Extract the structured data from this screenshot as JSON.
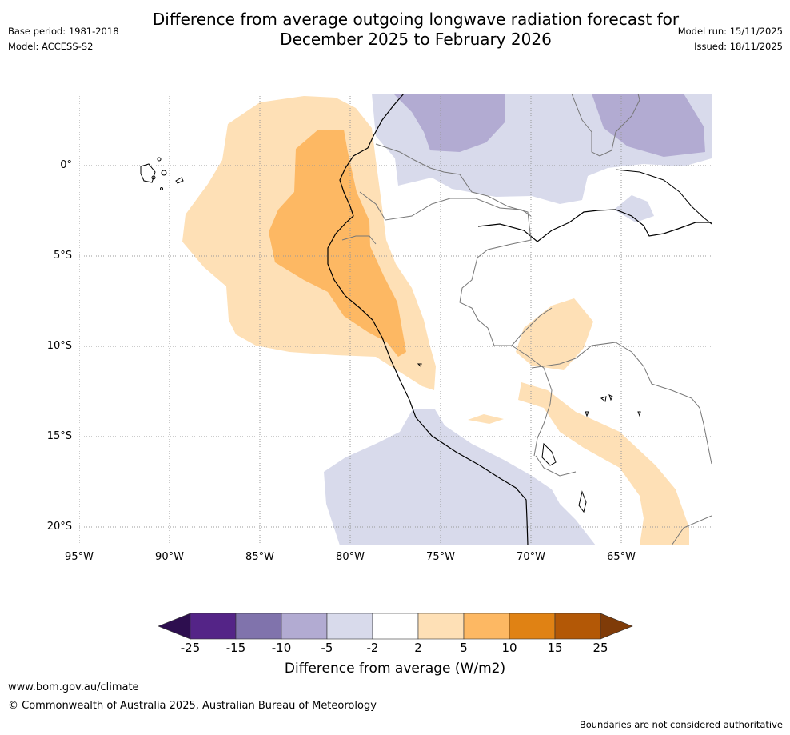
{
  "header": {
    "title_line1": "Difference from average outgoing longwave radiation forecast for",
    "title_line2": "December 2025 to February 2026",
    "base_period": "Base period: 1981-2018",
    "model": "Model: ACCESS-S2",
    "model_run": "Model run: 15/11/2025",
    "issued": "Issued: 18/11/2025"
  },
  "map": {
    "lat_labels": [
      "0°",
      "5°S",
      "10°S",
      "15°S",
      "20°S"
    ],
    "lon_labels": [
      "95°W",
      "90°W",
      "85°W",
      "80°W",
      "75°W",
      "70°W",
      "65°W"
    ]
  },
  "colorbar": {
    "ticks": [
      "-25",
      "-15",
      "-10",
      "-5",
      "-2",
      "2",
      "5",
      "10",
      "15",
      "25"
    ],
    "colors": {
      "lt_minus25": "#2d0e4f",
      "m25_m15": "#542487",
      "m15_m10": "#8073ac",
      "m10_m5": "#b2abd2",
      "m5_m2": "#d8daeb",
      "m2_2": "#ffffff",
      "p2_p5": "#fee0b6",
      "p5_p10": "#fdb863",
      "p10_p15": "#e08214",
      "p15_p25": "#b35806",
      "gt_25": "#7f3b08"
    },
    "label": "Difference from average (W/m2)"
  },
  "footer": {
    "url": "www.bom.gov.au/climate",
    "copyright": "© Commonwealth of Australia 2025, Australian Bureau of Meteorology",
    "disclaimer": "Boundaries are not considered authoritative"
  }
}
